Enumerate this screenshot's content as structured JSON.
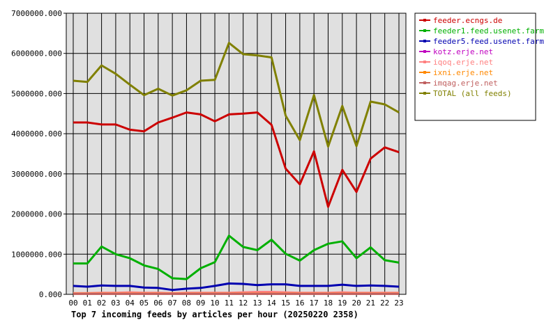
{
  "chart_data": {
    "type": "line",
    "title": "Top 7 incoming feeds by articles per hour (20250220 2358)",
    "xlabel": "",
    "ylabel": "",
    "ylim": [
      0,
      7000000
    ],
    "yticks": [
      "0.000",
      "1000000.000",
      "2000000.000",
      "3000000.000",
      "4000000.000",
      "5000000.000",
      "6000000.000",
      "7000000.000"
    ],
    "categories": [
      "00",
      "01",
      "02",
      "03",
      "04",
      "05",
      "06",
      "07",
      "08",
      "09",
      "10",
      "11",
      "12",
      "13",
      "14",
      "15",
      "16",
      "17",
      "18",
      "19",
      "20",
      "21",
      "22",
      "23"
    ],
    "grid": true,
    "legend_position": "right",
    "series": [
      {
        "name": "feeder.ecngs.de",
        "color": "#cc0000",
        "values": [
          4280000,
          4280000,
          4230000,
          4230000,
          4100000,
          4060000,
          4280000,
          4400000,
          4530000,
          4480000,
          4310000,
          4480000,
          4500000,
          4530000,
          4220000,
          3130000,
          2740000,
          3560000,
          2180000,
          3100000,
          2550000,
          3380000,
          3660000,
          3540000
        ]
      },
      {
        "name": "feeder1.feed.usenet.farm",
        "color": "#00b000",
        "values": [
          770000,
          770000,
          1190000,
          1000000,
          900000,
          720000,
          630000,
          400000,
          380000,
          650000,
          800000,
          1460000,
          1180000,
          1100000,
          1360000,
          1010000,
          840000,
          1100000,
          1260000,
          1320000,
          900000,
          1170000,
          850000,
          790000
        ]
      },
      {
        "name": "feeder5.feed.usenet.farm",
        "color": "#0000b0",
        "values": [
          210000,
          190000,
          220000,
          210000,
          210000,
          170000,
          160000,
          110000,
          140000,
          160000,
          210000,
          270000,
          260000,
          230000,
          250000,
          250000,
          210000,
          210000,
          210000,
          240000,
          210000,
          220000,
          210000,
          190000
        ]
      },
      {
        "name": "kotz.erje.net",
        "color": "#c000c0",
        "values": [
          20000,
          20000,
          20000,
          20000,
          20000,
          20000,
          20000,
          20000,
          20000,
          20000,
          20000,
          20000,
          20000,
          20000,
          20000,
          20000,
          20000,
          20000,
          20000,
          20000,
          20000,
          20000,
          20000,
          20000
        ]
      },
      {
        "name": "iqoq.erje.net",
        "color": "#ff8080",
        "values": [
          30000,
          30000,
          40000,
          40000,
          50000,
          40000,
          40000,
          30000,
          40000,
          40000,
          40000,
          40000,
          50000,
          60000,
          60000,
          50000,
          40000,
          40000,
          40000,
          50000,
          40000,
          40000,
          40000,
          40000
        ]
      },
      {
        "name": "ixni.erje.net",
        "color": "#ff8800",
        "values": [
          15000,
          15000,
          15000,
          15000,
          15000,
          15000,
          15000,
          15000,
          15000,
          15000,
          15000,
          15000,
          15000,
          15000,
          15000,
          15000,
          15000,
          15000,
          15000,
          15000,
          15000,
          15000,
          15000,
          15000
        ]
      },
      {
        "name": "imqag.erje.net",
        "color": "#c06060",
        "values": [
          10000,
          10000,
          10000,
          10000,
          10000,
          10000,
          10000,
          10000,
          10000,
          10000,
          10000,
          10000,
          10000,
          10000,
          10000,
          10000,
          10000,
          10000,
          10000,
          10000,
          10000,
          10000,
          10000,
          10000
        ]
      },
      {
        "name": "TOTAL (all feeds)",
        "color": "#808000",
        "values": [
          5320000,
          5290000,
          5700000,
          5490000,
          5220000,
          4960000,
          5120000,
          4950000,
          5080000,
          5320000,
          5340000,
          6260000,
          5980000,
          5950000,
          5900000,
          4450000,
          3840000,
          4960000,
          3680000,
          4690000,
          3690000,
          4800000,
          4730000,
          4530000
        ]
      }
    ]
  }
}
